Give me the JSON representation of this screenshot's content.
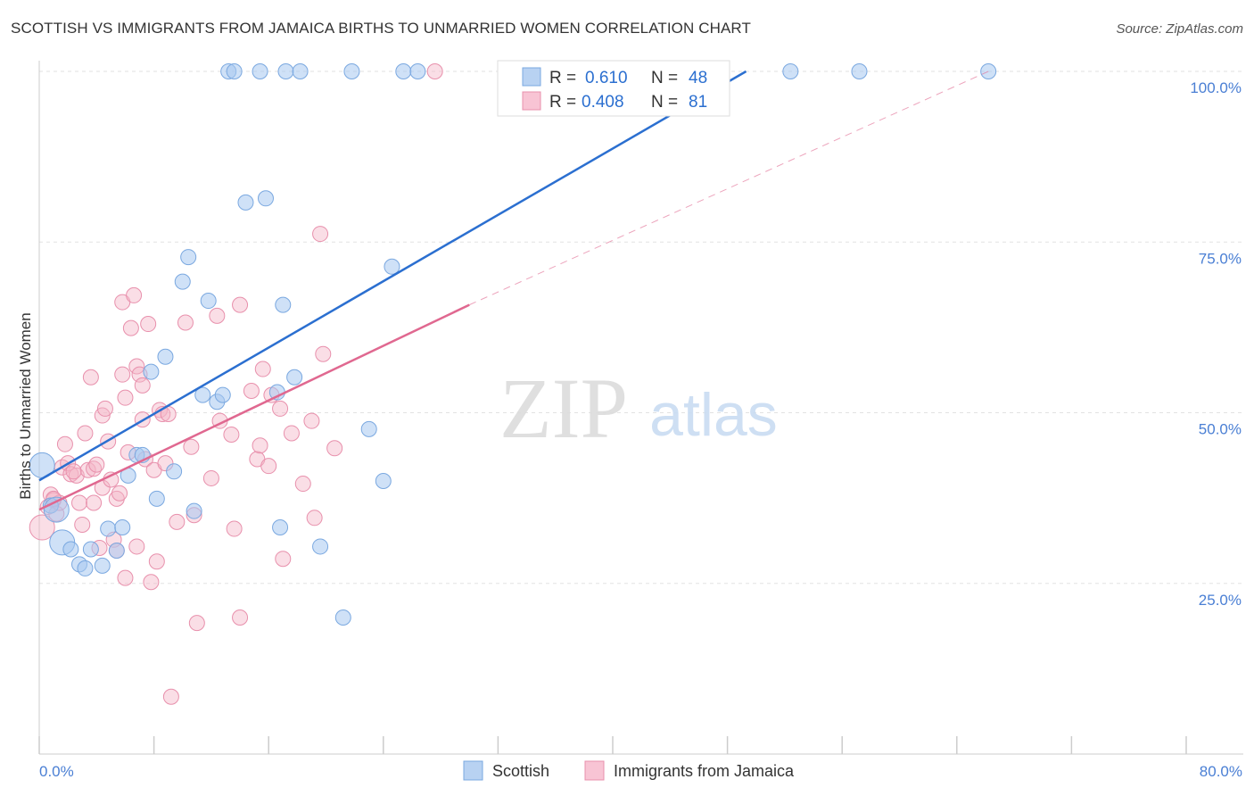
{
  "title": "SCOTTISH VS IMMIGRANTS FROM JAMAICA BIRTHS TO UNMARRIED WOMEN CORRELATION CHART",
  "source": "Source: ZipAtlas.com",
  "watermark": {
    "zip": "ZIP",
    "atlas": "atlas"
  },
  "colors": {
    "scottish": "#a8c8f0",
    "scottish_line": "#2b6fd0",
    "jamaica": "#f4b6c8",
    "jamaica_line": "#e06890",
    "axis_text": "#4a7fd4"
  },
  "legend_top": {
    "rows": [
      {
        "r_label": "R =",
        "r_value": "0.610",
        "n_label": "N =",
        "n_value": "48"
      },
      {
        "r_label": "R =",
        "r_value": "0.408",
        "n_label": "N =",
        "n_value": "81"
      }
    ]
  },
  "legend_bottom": [
    "Scottish",
    "Immigrants from Jamaica"
  ],
  "chart_data": {
    "type": "scatter",
    "title": "SCOTTISH VS IMMIGRANTS FROM JAMAICA BIRTHS TO UNMARRIED WOMEN CORRELATION CHART",
    "xlabel": "",
    "ylabel": "Births to Unmarried Women",
    "xlim": [
      0,
      80
    ],
    "ylim": [
      0,
      100
    ],
    "x_tick_labels": [
      "0.0%",
      "80.0%"
    ],
    "y_tick_labels": [
      "25.0%",
      "50.0%",
      "75.0%",
      "100.0%"
    ],
    "y_ticks": [
      25,
      50,
      75,
      100
    ],
    "grid": true,
    "legend": "bottom-center",
    "series": [
      {
        "name": "Scottish",
        "R": 0.61,
        "N": 48,
        "trend": {
          "x": [
            0,
            49.3
          ],
          "y": [
            40.1,
            100
          ]
        },
        "points": [
          [
            0.2,
            42.3
          ],
          [
            0.8,
            36.4
          ],
          [
            1.2,
            35.8
          ],
          [
            1.6,
            31.0
          ],
          [
            2.2,
            30.0
          ],
          [
            2.8,
            27.8
          ],
          [
            3.2,
            27.2
          ],
          [
            3.6,
            30.0
          ],
          [
            4.4,
            27.6
          ],
          [
            4.8,
            33.0
          ],
          [
            5.4,
            29.8
          ],
          [
            5.8,
            33.2
          ],
          [
            6.2,
            40.8
          ],
          [
            6.8,
            43.8
          ],
          [
            7.2,
            43.8
          ],
          [
            7.8,
            56.0
          ],
          [
            8.2,
            37.4
          ],
          [
            8.8,
            58.2
          ],
          [
            9.4,
            41.4
          ],
          [
            10.0,
            69.2
          ],
          [
            10.4,
            72.8
          ],
          [
            10.8,
            35.6
          ],
          [
            11.4,
            52.6
          ],
          [
            11.8,
            66.4
          ],
          [
            12.4,
            51.6
          ],
          [
            12.8,
            52.6
          ],
          [
            14.4,
            80.8
          ],
          [
            15.8,
            81.4
          ],
          [
            16.6,
            53.0
          ],
          [
            16.8,
            33.2
          ],
          [
            17.0,
            65.8
          ],
          [
            17.8,
            55.2
          ],
          [
            19.6,
            30.4
          ],
          [
            21.2,
            20.0
          ],
          [
            23.0,
            47.6
          ],
          [
            24.0,
            40.0
          ],
          [
            24.6,
            71.4
          ],
          [
            13.2,
            100
          ],
          [
            13.6,
            100
          ],
          [
            15.4,
            100
          ],
          [
            17.2,
            100
          ],
          [
            18.2,
            100
          ],
          [
            21.8,
            100
          ],
          [
            25.4,
            100
          ],
          [
            26.4,
            100
          ],
          [
            52.4,
            100
          ],
          [
            57.2,
            100
          ],
          [
            66.2,
            100
          ]
        ]
      },
      {
        "name": "Immigrants from Jamaica",
        "R": 0.408,
        "N": 81,
        "trend": {
          "x": [
            0,
            30.0
          ],
          "y": [
            35.8,
            65.8
          ]
        },
        "trend_dashed": {
          "x": [
            30.0,
            66.2
          ],
          "y": [
            65.8,
            100
          ]
        },
        "points": [
          [
            0.2,
            33.2
          ],
          [
            0.6,
            36.2
          ],
          [
            0.8,
            38.0
          ],
          [
            1.0,
            37.2
          ],
          [
            1.2,
            35.2
          ],
          [
            1.4,
            36.8
          ],
          [
            1.6,
            42.0
          ],
          [
            1.8,
            45.4
          ],
          [
            2.0,
            42.6
          ],
          [
            2.2,
            41.0
          ],
          [
            2.6,
            40.8
          ],
          [
            2.8,
            36.8
          ],
          [
            3.0,
            33.6
          ],
          [
            3.2,
            47.0
          ],
          [
            3.4,
            41.6
          ],
          [
            3.6,
            55.2
          ],
          [
            3.8,
            41.8
          ],
          [
            4.0,
            42.4
          ],
          [
            4.2,
            30.2
          ],
          [
            4.4,
            39.0
          ],
          [
            4.4,
            49.6
          ],
          [
            4.6,
            50.6
          ],
          [
            4.8,
            45.8
          ],
          [
            5.0,
            40.2
          ],
          [
            5.2,
            31.4
          ],
          [
            5.4,
            29.8
          ],
          [
            5.4,
            37.4
          ],
          [
            5.6,
            38.2
          ],
          [
            5.8,
            55.6
          ],
          [
            5.8,
            66.2
          ],
          [
            6.0,
            25.8
          ],
          [
            6.2,
            44.2
          ],
          [
            6.4,
            62.4
          ],
          [
            6.6,
            67.2
          ],
          [
            6.8,
            56.8
          ],
          [
            6.8,
            30.4
          ],
          [
            7.0,
            55.6
          ],
          [
            7.2,
            54.0
          ],
          [
            7.4,
            43.2
          ],
          [
            7.6,
            63.0
          ],
          [
            7.8,
            25.2
          ],
          [
            8.0,
            41.6
          ],
          [
            8.2,
            28.2
          ],
          [
            8.4,
            50.4
          ],
          [
            8.6,
            49.8
          ],
          [
            9.0,
            49.8
          ],
          [
            9.2,
            8.4
          ],
          [
            9.6,
            34.0
          ],
          [
            10.2,
            63.2
          ],
          [
            10.8,
            35.0
          ],
          [
            11.0,
            19.2
          ],
          [
            12.4,
            64.2
          ],
          [
            12.6,
            48.8
          ],
          [
            13.6,
            33.0
          ],
          [
            14.0,
            20.0
          ],
          [
            14.0,
            65.8
          ],
          [
            15.2,
            43.2
          ],
          [
            15.4,
            45.2
          ],
          [
            15.6,
            56.4
          ],
          [
            16.2,
            52.6
          ],
          [
            16.8,
            50.6
          ],
          [
            17.0,
            28.6
          ],
          [
            19.0,
            48.8
          ],
          [
            19.2,
            34.6
          ],
          [
            19.6,
            76.2
          ],
          [
            19.8,
            58.6
          ],
          [
            27.6,
            100
          ],
          [
            1.0,
            37.4
          ],
          [
            2.4,
            41.4
          ],
          [
            3.8,
            36.8
          ],
          [
            6.0,
            52.2
          ],
          [
            7.2,
            49.0
          ],
          [
            8.8,
            42.6
          ],
          [
            10.6,
            45.0
          ],
          [
            12.0,
            40.4
          ],
          [
            13.4,
            46.8
          ],
          [
            14.8,
            53.2
          ],
          [
            16.0,
            42.2
          ],
          [
            17.6,
            47.0
          ],
          [
            18.4,
            39.6
          ],
          [
            20.6,
            44.8
          ]
        ]
      }
    ]
  }
}
